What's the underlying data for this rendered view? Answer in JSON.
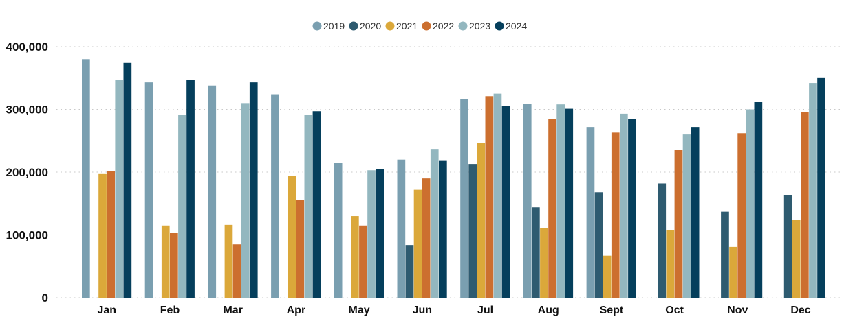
{
  "chart_data": {
    "type": "bar",
    "categories": [
      "Jan",
      "Feb",
      "Mar",
      "Apr",
      "May",
      "Jun",
      "Jul",
      "Aug",
      "Sept",
      "Oct",
      "Nov",
      "Dec"
    ],
    "series": [
      {
        "name": "2019",
        "color": "#7A9FB0",
        "values": [
          380000,
          343000,
          338000,
          324000,
          215000,
          220000,
          316000,
          309000,
          272000,
          null,
          null,
          null
        ]
      },
      {
        "name": "2020",
        "color": "#2E5B70",
        "values": [
          null,
          null,
          null,
          null,
          null,
          84000,
          213000,
          144000,
          168000,
          182000,
          137000,
          163000
        ]
      },
      {
        "name": "2021",
        "color": "#DBA83A",
        "values": [
          198000,
          115000,
          116000,
          194000,
          130000,
          172000,
          246000,
          111000,
          67000,
          108000,
          81000,
          124000
        ]
      },
      {
        "name": "2022",
        "color": "#CC6F2F",
        "values": [
          202000,
          103000,
          85000,
          156000,
          115000,
          190000,
          321000,
          285000,
          263000,
          235000,
          262000,
          296000
        ]
      },
      {
        "name": "2023",
        "color": "#93B7BF",
        "values": [
          347000,
          291000,
          310000,
          291000,
          203000,
          237000,
          325000,
          308000,
          293000,
          260000,
          300000,
          342000
        ]
      },
      {
        "name": "2024",
        "color": "#053F5C",
        "values": [
          374000,
          347000,
          343000,
          297000,
          205000,
          219000,
          306000,
          301000,
          285000,
          272000,
          312000,
          351000
        ]
      }
    ],
    "ylim": [
      0,
      400000
    ],
    "yticks": [
      0,
      100000,
      200000,
      300000,
      400000
    ],
    "ytick_labels": [
      "0",
      "100,000",
      "200,000",
      "300,000",
      "400,000"
    ],
    "title": "",
    "xlabel": "",
    "ylabel": "",
    "grid": true,
    "legend": "top-center"
  }
}
